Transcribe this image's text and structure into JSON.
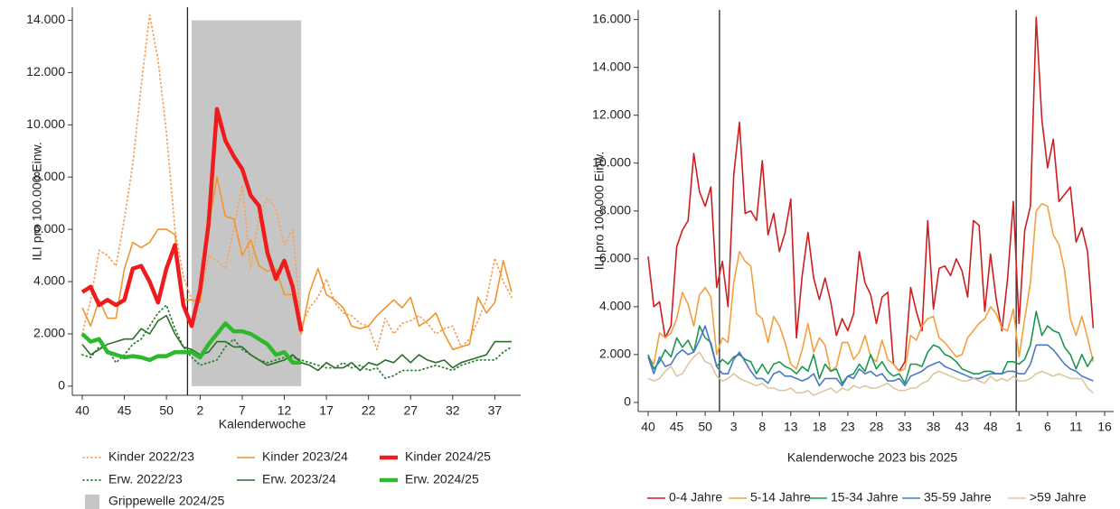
{
  "chart_data": [
    {
      "type": "line",
      "ylabel": "ILI pro 100.000 Einw.",
      "xlabel": "Kalenderwoche",
      "categories": [
        40,
        null,
        null,
        null,
        null,
        45,
        null,
        null,
        null,
        null,
        50,
        null,
        null,
        null,
        2,
        null,
        null,
        null,
        null,
        7,
        null,
        null,
        null,
        null,
        12,
        null,
        null,
        null,
        null,
        17,
        null,
        null,
        null,
        null,
        22,
        null,
        null,
        null,
        null,
        27,
        null,
        null,
        null,
        null,
        32,
        null,
        null,
        null,
        null,
        37,
        null,
        null
      ],
      "ylim": [
        -350,
        14500
      ],
      "yticks": [
        {
          "value": 0,
          "label": "0"
        },
        {
          "value": 2000,
          "label": "2.000"
        },
        {
          "value": 4000,
          "label": "4.000"
        },
        {
          "value": 6000,
          "label": "6.000"
        },
        {
          "value": 8000,
          "label": "8.000"
        },
        {
          "value": 10000,
          "label": "10.000"
        },
        {
          "value": 12000,
          "label": "12.000"
        },
        {
          "value": 14000,
          "label": "14.000"
        }
      ],
      "grid": false,
      "legend": "bottom",
      "shade": {
        "name": "Grippewelle 2024/25",
        "color": "#c6c6c6",
        "x": [
          13,
          26
        ],
        "y": [
          0,
          14000
        ]
      },
      "series": [
        {
          "name": "Kinder 2022/23",
          "color": "#f4a460",
          "style": "dotted",
          "weight": "normal",
          "values": [
            2000,
            3300,
            5200,
            5000,
            4600,
            6400,
            8500,
            11500,
            14200,
            12500,
            9700,
            6000,
            4200,
            3300,
            3300,
            5000,
            4800,
            4500,
            6000,
            7700,
            4500,
            6500,
            7200,
            6800,
            5400,
            6000,
            2300,
            3000,
            3400,
            4100,
            3200,
            2800,
            2700,
            2400,
            2300,
            1400,
            2600,
            2000,
            2400,
            2500,
            2700,
            2400,
            2000,
            2200,
            2300,
            1500,
            1800,
            2500,
            3300,
            4900,
            4000,
            3400
          ]
        },
        {
          "name": "Kinder 2023/24",
          "color": "#f0962d",
          "style": "solid",
          "weight": "normal",
          "values": [
            3000,
            2300,
            3300,
            2600,
            2600,
            4500,
            5500,
            5300,
            5500,
            6000,
            6000,
            5800,
            3300,
            3300,
            3200,
            6100,
            8000,
            6500,
            6400,
            5000,
            5600,
            4600,
            4400,
            4500,
            3500,
            3500,
            2000,
            3600,
            4500,
            3500,
            3300,
            3000,
            2300,
            2200,
            2300,
            2700,
            3000,
            3300,
            3000,
            3400,
            2300,
            2500,
            2800,
            2000,
            1400,
            1500,
            1600,
            3400,
            2800,
            3200,
            4800,
            3600
          ]
        },
        {
          "name": "Kinder 2024/25",
          "color": "#ee1c1c",
          "style": "solid",
          "weight": "bold",
          "values": [
            3600,
            3800,
            3100,
            3300,
            3100,
            3300,
            4500,
            4600,
            4000,
            3200,
            4500,
            5400,
            3100,
            2300,
            3700,
            6200,
            10600,
            9400,
            8800,
            8300,
            7300,
            6900,
            5100,
            4100,
            4800,
            3800,
            2100,
            null,
            null,
            null,
            null,
            null,
            null,
            null,
            null,
            null,
            null,
            null,
            null,
            null,
            null,
            null,
            null,
            null,
            null,
            null,
            null,
            null,
            null,
            null,
            null,
            null
          ]
        },
        {
          "name": "Erw. 2022/23",
          "color": "#2e7d3e",
          "style": "dotted",
          "weight": "normal",
          "values": [
            1200,
            1100,
            1500,
            1400,
            900,
            1200,
            1600,
            1800,
            2300,
            2800,
            3100,
            2200,
            1500,
            1100,
            800,
            900,
            1000,
            1500,
            1800,
            1400,
            1200,
            1000,
            900,
            1000,
            1100,
            1100,
            1000,
            900,
            800,
            700,
            700,
            900,
            700,
            800,
            600,
            700,
            300,
            400,
            600,
            600,
            600,
            700,
            800,
            700,
            600,
            800,
            900,
            1000,
            1000,
            1000,
            1300,
            1500
          ]
        },
        {
          "name": "Erw. 2023/24",
          "color": "#2a6e2a",
          "style": "solid",
          "weight": "normal",
          "values": [
            1600,
            1200,
            1400,
            1600,
            1700,
            1800,
            1800,
            2200,
            2000,
            2500,
            2700,
            2000,
            1500,
            1400,
            1200,
            1300,
            1700,
            1700,
            1500,
            1500,
            1200,
            1000,
            800,
            900,
            1000,
            1200,
            900,
            800,
            600,
            900,
            700,
            700,
            900,
            600,
            900,
            800,
            1000,
            900,
            1200,
            900,
            1200,
            1000,
            900,
            1000,
            700,
            900,
            1000,
            1100,
            1200,
            1700,
            1700,
            1700
          ]
        },
        {
          "name": "Erw. 2024/25",
          "color": "#2db82d",
          "style": "solid",
          "weight": "bold",
          "values": [
            2000,
            1700,
            1800,
            1300,
            1200,
            1100,
            1150,
            1100,
            1000,
            1150,
            1150,
            1300,
            1300,
            1300,
            1100,
            1600,
            2000,
            2400,
            2100,
            2100,
            2000,
            1800,
            1600,
            1200,
            1300,
            900,
            900,
            null,
            null,
            null,
            null,
            null,
            null,
            null,
            null,
            null,
            null,
            null,
            null,
            null,
            null,
            null,
            null,
            null,
            null,
            null,
            null,
            null,
            null,
            null,
            null,
            null
          ]
        }
      ]
    },
    {
      "type": "line",
      "ylabel": "ILI pro 100.000 Einw.",
      "xlabel": "Kalenderwoche 2023 bis 2025",
      "categories": [
        40,
        null,
        null,
        null,
        null,
        45,
        null,
        null,
        null,
        null,
        50,
        null,
        null,
        null,
        null,
        3,
        null,
        null,
        null,
        null,
        8,
        null,
        null,
        null,
        null,
        13,
        null,
        null,
        null,
        null,
        18,
        null,
        null,
        null,
        null,
        23,
        null,
        null,
        null,
        null,
        28,
        null,
        null,
        null,
        null,
        33,
        null,
        null,
        null,
        null,
        38,
        null,
        null,
        null,
        null,
        43,
        null,
        null,
        null,
        null,
        48,
        null,
        null,
        null,
        null,
        1,
        null,
        null,
        null,
        null,
        6,
        null,
        null,
        null,
        null,
        11,
        null,
        null,
        null,
        null,
        16
      ],
      "ylim": [
        -380,
        16400
      ],
      "yticks": [
        {
          "value": 0,
          "label": "0"
        },
        {
          "value": 2000,
          "label": "2.000"
        },
        {
          "value": 4000,
          "label": "4.000"
        },
        {
          "value": 6000,
          "label": "6.000"
        },
        {
          "value": 8000,
          "label": "8.000"
        },
        {
          "value": 10000,
          "label": "10.000"
        },
        {
          "value": 12000,
          "label": "12.000"
        },
        {
          "value": 14000,
          "label": "14.000"
        },
        {
          "value": 16000,
          "label": "16.000"
        }
      ],
      "grid": false,
      "legend": "bottom",
      "series": [
        {
          "name": "0-4 Jahre",
          "color": "#cc1f1f",
          "style": "solid",
          "weight": "normal",
          "values": [
            6100,
            4000,
            4200,
            2700,
            3200,
            6500,
            7200,
            7600,
            10400,
            8800,
            8200,
            9000,
            4800,
            5900,
            4000,
            9500,
            11700,
            7900,
            8000,
            7600,
            10100,
            7000,
            7900,
            6300,
            7100,
            8500,
            2700,
            5300,
            7100,
            5200,
            4300,
            5200,
            4200,
            2800,
            3500,
            3000,
            3700,
            6300,
            5000,
            4500,
            3300,
            4400,
            4600,
            1600,
            1300,
            1700,
            4800,
            3800,
            3000,
            7600,
            3900,
            5600,
            5700,
            5300,
            6000,
            5500,
            4400,
            7600,
            7400,
            3800,
            6200,
            4300,
            3000,
            5200,
            8400,
            3300,
            7200,
            8200,
            16100,
            11800,
            9800,
            11000,
            8400,
            8700,
            9000,
            6700,
            7300,
            6300,
            3100,
            null,
            null
          ]
        },
        {
          "name": "5-14 Jahre",
          "color": "#f5a040",
          "style": "solid",
          "weight": "normal",
          "values": [
            1900,
            1600,
            2900,
            2700,
            2900,
            3500,
            4600,
            4100,
            3200,
            4500,
            4800,
            4400,
            2000,
            2700,
            2500,
            5000,
            6300,
            5900,
            5700,
            3700,
            3500,
            2500,
            3600,
            3200,
            2500,
            1600,
            1400,
            2200,
            3300,
            2100,
            2700,
            2400,
            1300,
            1500,
            2500,
            2500,
            1800,
            2100,
            2800,
            1900,
            1700,
            2600,
            1800,
            1600,
            1300,
            1400,
            2800,
            2600,
            3200,
            3500,
            3600,
            2700,
            2500,
            2200,
            1900,
            2000,
            2700,
            3000,
            3300,
            3500,
            4000,
            3700,
            3100,
            3000,
            3900,
            1900,
            3500,
            5000,
            8000,
            8300,
            8200,
            7000,
            6600,
            5500,
            3500,
            2800,
            3600,
            2700,
            1700,
            null,
            null
          ]
        },
        {
          "name": "15-34 Jahre",
          "color": "#1a9850",
          "style": "solid",
          "weight": "normal",
          "values": [
            2000,
            1400,
            1700,
            2200,
            1900,
            2700,
            2300,
            2600,
            2100,
            3200,
            2700,
            2500,
            1500,
            1800,
            1600,
            1900,
            2000,
            1800,
            1700,
            1200,
            1600,
            1200,
            1600,
            1700,
            1500,
            1400,
            1200,
            1500,
            1300,
            2000,
            1000,
            1600,
            1300,
            1400,
            800,
            1100,
            1200,
            1600,
            1300,
            2000,
            1400,
            1700,
            1300,
            1100,
            1200,
            800,
            1600,
            1600,
            1500,
            2100,
            2400,
            2300,
            2000,
            1900,
            1700,
            1400,
            1300,
            1200,
            1200,
            1300,
            1300,
            1200,
            1200,
            1700,
            1700,
            1600,
            1800,
            2400,
            3800,
            2800,
            3200,
            3000,
            2900,
            2300,
            2000,
            1400,
            2000,
            1500,
            1900,
            null,
            null
          ]
        },
        {
          "name": "35-59 Jahre",
          "color": "#4a78c8",
          "style": "solid",
          "weight": "normal",
          "values": [
            1900,
            1200,
            1900,
            1500,
            1600,
            2000,
            2200,
            2000,
            2100,
            2600,
            3200,
            2400,
            1500,
            1200,
            1200,
            1800,
            2100,
            1700,
            1300,
            1000,
            1000,
            800,
            1200,
            1300,
            1100,
            1100,
            1000,
            900,
            1000,
            1200,
            700,
            1000,
            1000,
            1000,
            700,
            1100,
            1000,
            1400,
            1200,
            1300,
            1100,
            1200,
            900,
            900,
            1000,
            700,
            1100,
            1200,
            1300,
            1500,
            1600,
            1700,
            1500,
            1400,
            1300,
            1200,
            1100,
            1000,
            1000,
            1100,
            1200,
            1200,
            1200,
            1300,
            1300,
            1200,
            1200,
            1600,
            2400,
            2400,
            2400,
            2200,
            1900,
            1600,
            1400,
            1300,
            1100,
            1000,
            900,
            null,
            null
          ]
        },
        {
          "name": ">59 Jahre",
          "color": "#dcc7a0",
          "style": "solid",
          "weight": "normal",
          "values": [
            1000,
            900,
            1000,
            1300,
            1500,
            1100,
            1200,
            1600,
            1900,
            2100,
            1700,
            1600,
            1100,
            900,
            1000,
            1200,
            1000,
            900,
            800,
            700,
            800,
            600,
            600,
            500,
            500,
            600,
            400,
            400,
            500,
            300,
            400,
            500,
            600,
            400,
            600,
            500,
            700,
            600,
            700,
            600,
            600,
            700,
            800,
            600,
            500,
            500,
            600,
            600,
            800,
            900,
            1200,
            1300,
            1200,
            1100,
            1000,
            900,
            900,
            1000,
            900,
            800,
            1100,
            900,
            1000,
            900,
            1100,
            900,
            900,
            1000,
            1200,
            1300,
            1200,
            1100,
            1200,
            1100,
            1000,
            1000,
            1000,
            600,
            400,
            null,
            null
          ]
        }
      ]
    }
  ]
}
